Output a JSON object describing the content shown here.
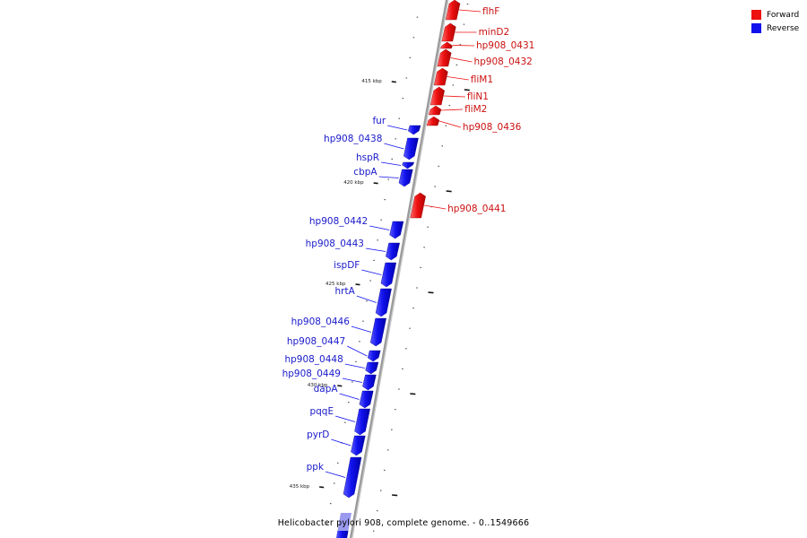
{
  "caption": "Helicobacter pylori 908, complete genome. - 0..1549666",
  "legend": [
    {
      "label": "Forward",
      "color": "#ee1111"
    },
    {
      "label": "Reverse",
      "color": "#1111ee"
    }
  ],
  "colors": {
    "forward": "#ee1111",
    "reverse": "#1111ee",
    "backbone": "#9a9a9a"
  },
  "scale_labels": [
    "415 kbp",
    "420 kbp",
    "425 kbp",
    "430 kbp",
    "435 kbp"
  ],
  "genes": [
    {
      "name": "flhF",
      "strand": "forward"
    },
    {
      "name": "minD2",
      "strand": "forward"
    },
    {
      "name": "hp908_0431",
      "strand": "forward"
    },
    {
      "name": "hp908_0432",
      "strand": "forward"
    },
    {
      "name": "fliM1",
      "strand": "forward"
    },
    {
      "name": "fliN1",
      "strand": "forward"
    },
    {
      "name": "fliM2",
      "strand": "forward"
    },
    {
      "name": "hp908_0436",
      "strand": "forward"
    },
    {
      "name": "fur",
      "strand": "reverse"
    },
    {
      "name": "hp908_0438",
      "strand": "reverse"
    },
    {
      "name": "hspR",
      "strand": "reverse"
    },
    {
      "name": "cbpA",
      "strand": "reverse"
    },
    {
      "name": "hp908_0441",
      "strand": "forward"
    },
    {
      "name": "hp908_0442",
      "strand": "reverse"
    },
    {
      "name": "hp908_0443",
      "strand": "reverse"
    },
    {
      "name": "ispDF",
      "strand": "reverse"
    },
    {
      "name": "hrtA",
      "strand": "reverse"
    },
    {
      "name": "hp908_0446",
      "strand": "reverse"
    },
    {
      "name": "hp908_0447",
      "strand": "reverse"
    },
    {
      "name": "hp908_0448",
      "strand": "reverse"
    },
    {
      "name": "hp908_0449",
      "strand": "reverse"
    },
    {
      "name": "dapA",
      "strand": "reverse"
    },
    {
      "name": "pqqE",
      "strand": "reverse"
    },
    {
      "name": "pyrD",
      "strand": "reverse"
    },
    {
      "name": "ppk",
      "strand": "reverse"
    }
  ]
}
